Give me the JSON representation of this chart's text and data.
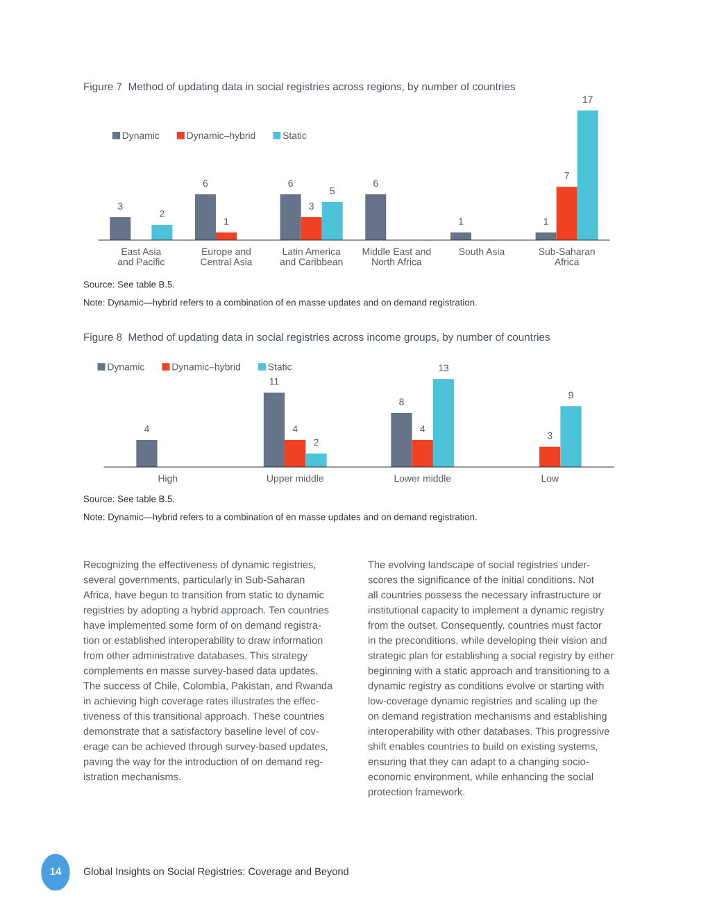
{
  "chart_data": [
    {
      "type": "bar",
      "title": "Figure 7  Method of updating data in social registries across regions, by number of countries",
      "categories": [
        "East Asia\nand Pacific",
        "Europe and\nCentral Asia",
        "Latin America\nand Caribbean",
        "Middle East and\nNorth Africa",
        "South Asia",
        "Sub-Saharan\nAfrica"
      ],
      "series": [
        {
          "name": "Dynamic",
          "color": "#667388",
          "values": [
            3,
            6,
            6,
            6,
            1,
            1
          ]
        },
        {
          "name": "Dynamic–hybrid",
          "color": "#f04124",
          "values": [
            null,
            1,
            3,
            null,
            null,
            7
          ]
        },
        {
          "name": "Static",
          "color": "#4cc3d9",
          "values": [
            2,
            null,
            5,
            null,
            null,
            17
          ]
        }
      ],
      "data_labels": true,
      "legend": "top left",
      "annotations": [
        "Source: See table B.5.",
        "Note: Dynamic—hybrid refers to a combination of en masse updates and on demand registration."
      ]
    },
    {
      "type": "bar",
      "title": "Figure 8  Method of updating data in social registries across income groups, by number of countries",
      "categories": [
        "High",
        "Upper middle",
        "Lower middle",
        "Low"
      ],
      "series": [
        {
          "name": "Dynamic",
          "color": "#667388",
          "values": [
            4,
            11,
            8,
            null
          ]
        },
        {
          "name": "Dynamic–hybrid",
          "color": "#f04124",
          "values": [
            null,
            4,
            4,
            3
          ]
        },
        {
          "name": "Static",
          "color": "#4cc3d9",
          "values": [
            null,
            2,
            13,
            9
          ]
        }
      ],
      "data_labels": true,
      "legend": "top left",
      "annotations": [
        "Source: See table B.5.",
        "Note: Dynamic—hybrid refers to a combination of en masse updates and on demand registration."
      ]
    },
    {
      "type": "other",
      "annotations": [
        "Recognizing the effectiveness of dynamic registries,\nseveral governments, particularly in Sub-Saharan\nAfrica, have begun to transition from static to dynamic\nregistries by adopting a hybrid approach. Ten countries\nhave implemented some form of on demand registra-\ntion or established interoperability to draw information\nfrom other administrative databases. This strategy\ncomplements en masse survey-based data updates.\nThe success of Chile, Colombia, Pakistan, and Rwanda\nin achieving high coverage rates illustrates the effec-\ntiveness of this transitional approach. These countries\ndemonstrate that a satisfactory baseline level of cov-\nerage can be achieved through survey-based updates,\npaving the way for the introduction of on demand reg-\nistration mechanisms.",
        "The evolving landscape of social registries under-\nscores the significance of the initial conditions. Not\nall countries possess the necessary infrastructure or\ninstitutional capacity to implement a dynamic registry\nfrom the outset. Consequently, countries must factor\nin the preconditions, while developing their vision and\nstrategic plan for establishing a social registry by either\nbeginning with a static approach and transitioning to a\ndynamic registry as conditions evolve or starting with\nlow-coverage dynamic registries and scaling up the\non demand registration mechanisms and establishing\ninteroperability with other databases. This progressive\nshift enables countries to build on existing systems,\nensuring that they can adapt to a changing socio-\neconomic environment, while enhancing the social\nprotection framework.",
        "14",
        "Global Insights on Social Registries: Coverage and Beyond"
      ]
    }
  ]
}
